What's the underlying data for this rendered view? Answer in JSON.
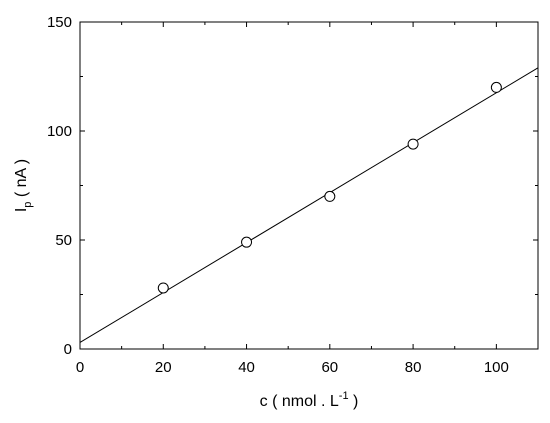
{
  "chart_data": {
    "type": "scatter",
    "xlabel": {
      "main": "c ( nmol . L",
      "superscript": "-1",
      "end": " )"
    },
    "ylabel": {
      "main": "I",
      "subscript": "p",
      "end": " ( nA )"
    },
    "xlim": [
      0,
      110
    ],
    "ylim": [
      0,
      150
    ],
    "x_ticks": [
      0,
      20,
      40,
      60,
      80,
      100
    ],
    "y_ticks": [
      0,
      50,
      100,
      150
    ],
    "x_tick_labels": [
      "0",
      "20",
      "40",
      "60",
      "80",
      "100"
    ],
    "y_tick_labels": [
      "0",
      "50",
      "100",
      "150"
    ],
    "series": [
      {
        "marker": "open-circle",
        "x": [
          20,
          40,
          60,
          80,
          100
        ],
        "y": [
          28,
          49,
          70,
          94,
          120
        ]
      }
    ],
    "fit_line": {
      "x": [
        0,
        110
      ],
      "y": [
        3,
        129
      ]
    },
    "grid": false,
    "legend": "none"
  }
}
